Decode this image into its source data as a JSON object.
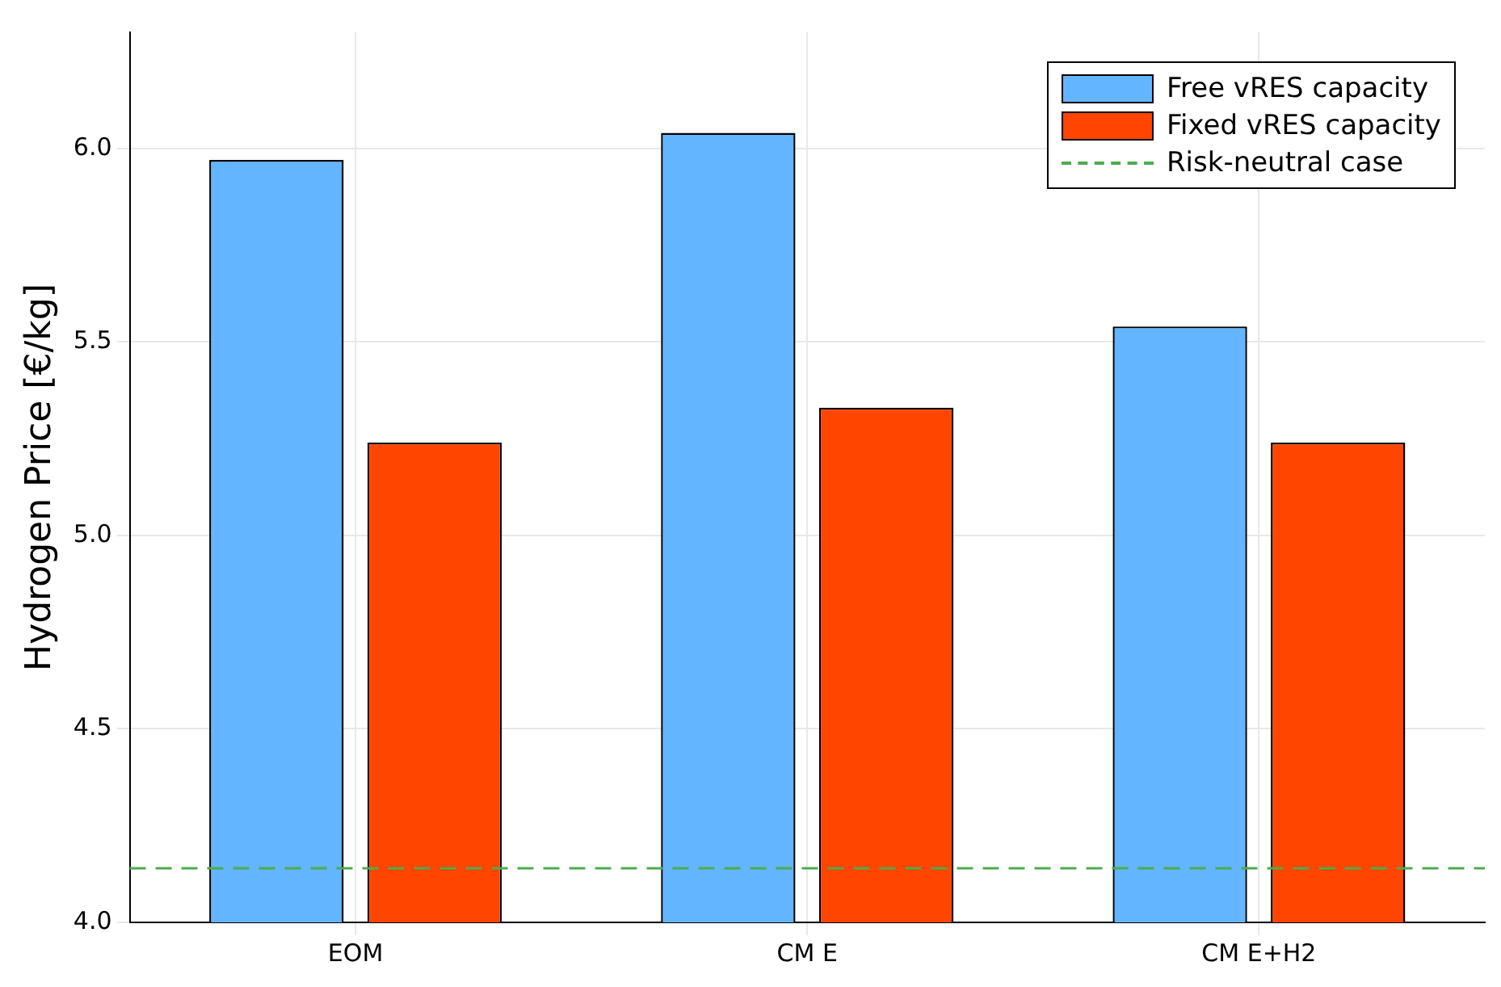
{
  "chart_data": {
    "type": "bar",
    "ylabel": "Hydrogen Price [€/kg]",
    "categories": [
      "EOM",
      "CM E",
      "CM E+H2"
    ],
    "series": [
      {
        "name": "Free vRES capacity",
        "color": "#63b5ff",
        "values": [
          5.97,
          6.04,
          5.54
        ]
      },
      {
        "name": "Fixed vRES capacity",
        "color": "#ff4500",
        "values": [
          5.24,
          5.33,
          5.24
        ]
      }
    ],
    "ylim": [
      4.0,
      6.3
    ],
    "yticks": [
      {
        "value": 4,
        "label": "4.0"
      },
      {
        "value": 4.5,
        "label": "4.5"
      },
      {
        "value": 5,
        "label": "5.0"
      },
      {
        "value": 5.5,
        "label": "5.5"
      },
      {
        "value": 6,
        "label": "6.0"
      }
    ],
    "ref_lines": [
      {
        "axis": "y",
        "value": 4.14,
        "label": "Risk-neutral case",
        "color": "#4cac4c",
        "line_style": "dashed"
      }
    ],
    "grid": true,
    "legend": "top right"
  }
}
